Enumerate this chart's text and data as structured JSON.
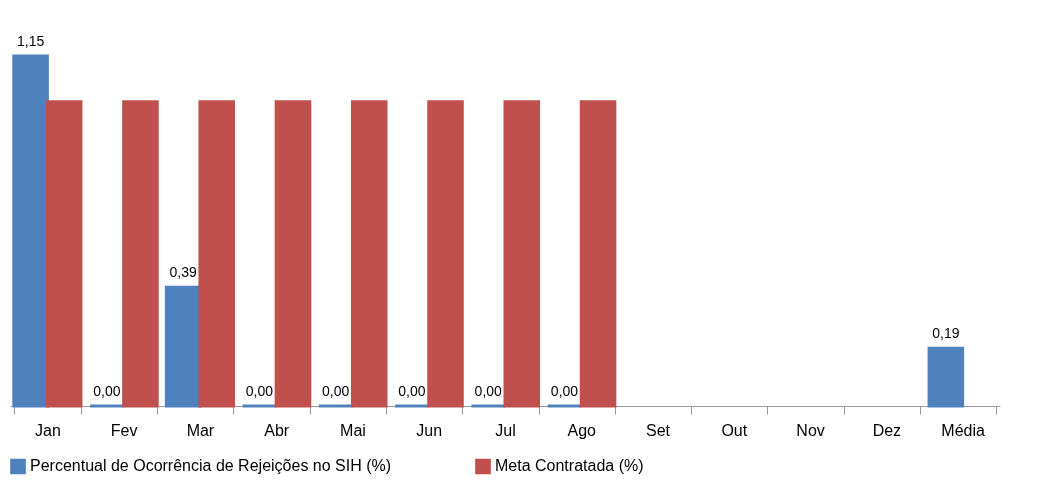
{
  "chart_data": {
    "type": "bar",
    "categories": [
      "Jan",
      "Fev",
      "Mar",
      "Abr",
      "Mai",
      "Jun",
      "Jul",
      "Ago",
      "Set",
      "Out",
      "Nov",
      "Dez",
      "Média"
    ],
    "series": [
      {
        "name": "Percentual de Ocorrência de Rejeições no SIH (%)",
        "color": "#4f81bd",
        "values": [
          1.15,
          0,
          0.39,
          0,
          0,
          0,
          0,
          0,
          null,
          null,
          null,
          null,
          0.19
        ],
        "value_labels": [
          "1,15",
          "0,00",
          "0,39",
          "0,00",
          "0,00",
          "0,00",
          "0,00",
          "0,00",
          null,
          null,
          null,
          null,
          "0,19"
        ]
      },
      {
        "name": "Meta Contratada (%)",
        "color": "#c0504d",
        "values": [
          1.0,
          1.0,
          1.0,
          1.0,
          1.0,
          1.0,
          1.0,
          1.0,
          null,
          null,
          null,
          null,
          null
        ]
      }
    ],
    "grid": false,
    "legend": "bottom",
    "tick_labels": "x"
  }
}
